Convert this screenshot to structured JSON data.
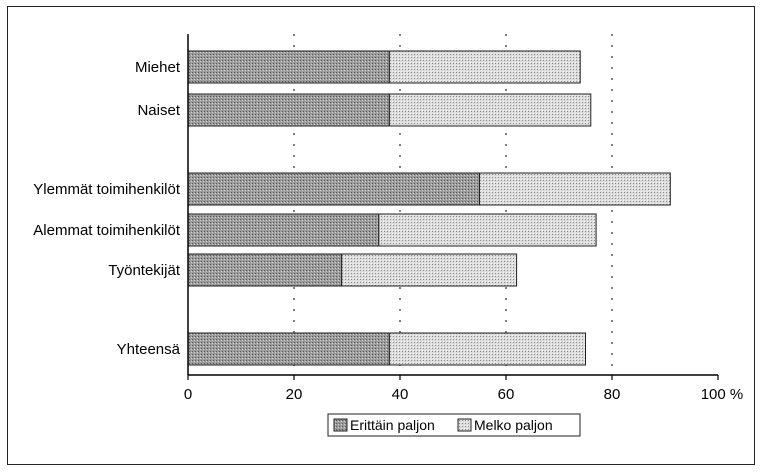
{
  "chart_data": {
    "type": "bar",
    "orientation": "horizontal",
    "stacked": true,
    "categories": [
      "Miehet",
      "Naiset",
      "Ylemmät toimihenkilöt",
      "Alemmat toimihenkilöt",
      "Työntekijät",
      "Yhteensä"
    ],
    "category_groups": [
      [
        "Miehet",
        "Naiset"
      ],
      [
        "Ylemmät toimihenkilöt",
        "Alemmat toimihenkilöt",
        "Työntekijät"
      ],
      [
        "Yhteensä"
      ]
    ],
    "series": [
      {
        "name": "Erittäin paljon",
        "values": [
          38,
          38,
          55,
          36,
          29,
          38
        ],
        "color": "#9a9a9a"
      },
      {
        "name": "Melko paljon",
        "values": [
          36,
          38,
          36,
          41,
          33,
          37
        ],
        "color": "#d2d2d2"
      }
    ],
    "xlim": [
      0,
      100
    ],
    "xticks": [
      "0",
      "20",
      "40",
      "60",
      "80",
      "100 %"
    ],
    "grid": "dotted vertical",
    "legend_position": "bottom"
  }
}
